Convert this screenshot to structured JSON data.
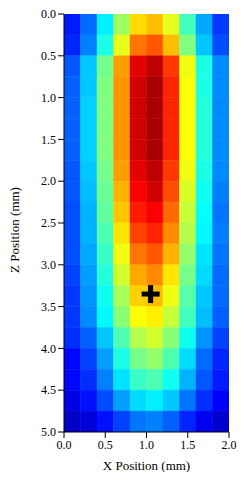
{
  "chart_data": {
    "type": "heatmap",
    "x_label": "X Position (mm)",
    "y_label": "Z Position (mm)",
    "xlim": [
      0,
      2
    ],
    "ylim": [
      0,
      5
    ],
    "xticks": [
      {
        "value": 0,
        "label": "0.0"
      },
      {
        "value": 0.5,
        "label": "0.5"
      },
      {
        "value": 1,
        "label": "1.0"
      },
      {
        "value": 1.5,
        "label": "1.5"
      },
      {
        "value": 2,
        "label": "2.0"
      }
    ],
    "yticks": [
      {
        "value": 0,
        "label": "0.0"
      },
      {
        "value": 0.5,
        "label": "0.5"
      },
      {
        "value": 1,
        "label": "1.0"
      },
      {
        "value": 1.5,
        "label": "1.5"
      },
      {
        "value": 2,
        "label": "2.0"
      },
      {
        "value": 2.5,
        "label": "2.5"
      },
      {
        "value": 3,
        "label": "3.0"
      },
      {
        "value": 3.5,
        "label": "3.5"
      },
      {
        "value": 4,
        "label": "4.0"
      },
      {
        "value": 4.5,
        "label": "4.5"
      },
      {
        "value": 5,
        "label": "5.0"
      }
    ],
    "zlim": [
      0,
      1
    ],
    "x": [
      0.1,
      0.3,
      0.5,
      0.7,
      0.9,
      1.1,
      1.3,
      1.5,
      1.7,
      1.9
    ],
    "y": [
      0.125,
      0.375,
      0.625,
      0.875,
      1.125,
      1.375,
      1.625,
      1.875,
      2.125,
      2.375,
      2.625,
      2.875,
      3.125,
      3.375,
      3.625,
      3.875,
      4.125,
      4.375,
      4.625,
      4.875
    ],
    "cells": [
      [
        0.15,
        0.23,
        0.36,
        0.53,
        0.66,
        0.69,
        0.6,
        0.44,
        0.29,
        0.18
      ],
      [
        0.16,
        0.25,
        0.4,
        0.6,
        0.76,
        0.79,
        0.69,
        0.5,
        0.32,
        0.2
      ],
      [
        0.21,
        0.32,
        0.49,
        0.72,
        0.9,
        0.94,
        0.82,
        0.61,
        0.4,
        0.26
      ],
      [
        0.22,
        0.32,
        0.5,
        0.73,
        0.92,
        0.96,
        0.84,
        0.62,
        0.4,
        0.26
      ],
      [
        0.22,
        0.33,
        0.5,
        0.73,
        0.92,
        0.96,
        0.84,
        0.62,
        0.41,
        0.26
      ],
      [
        0.22,
        0.33,
        0.5,
        0.73,
        0.92,
        0.96,
        0.84,
        0.62,
        0.41,
        0.26
      ],
      [
        0.22,
        0.33,
        0.5,
        0.73,
        0.92,
        0.96,
        0.84,
        0.62,
        0.41,
        0.26
      ],
      [
        0.21,
        0.32,
        0.49,
        0.72,
        0.9,
        0.94,
        0.82,
        0.61,
        0.4,
        0.26
      ],
      [
        0.21,
        0.31,
        0.48,
        0.7,
        0.88,
        0.92,
        0.8,
        0.59,
        0.39,
        0.25
      ],
      [
        0.2,
        0.3,
        0.47,
        0.68,
        0.85,
        0.88,
        0.77,
        0.57,
        0.38,
        0.24
      ],
      [
        0.2,
        0.3,
        0.45,
        0.65,
        0.81,
        0.84,
        0.74,
        0.55,
        0.37,
        0.25
      ],
      [
        0.2,
        0.29,
        0.43,
        0.61,
        0.76,
        0.79,
        0.7,
        0.52,
        0.35,
        0.24
      ],
      [
        0.19,
        0.28,
        0.41,
        0.58,
        0.71,
        0.74,
        0.65,
        0.49,
        0.34,
        0.23
      ],
      [
        0.18,
        0.27,
        0.39,
        0.54,
        0.67,
        0.69,
        0.61,
        0.46,
        0.32,
        0.23
      ],
      [
        0.18,
        0.26,
        0.37,
        0.51,
        0.62,
        0.64,
        0.57,
        0.44,
        0.31,
        0.22
      ],
      [
        0.17,
        0.22,
        0.32,
        0.45,
        0.55,
        0.58,
        0.51,
        0.39,
        0.27,
        0.19
      ],
      [
        0.13,
        0.19,
        0.28,
        0.4,
        0.49,
        0.52,
        0.45,
        0.34,
        0.23,
        0.16
      ],
      [
        0.13,
        0.17,
        0.25,
        0.35,
        0.43,
        0.45,
        0.39,
        0.3,
        0.21,
        0.15
      ],
      [
        0.1,
        0.14,
        0.2,
        0.28,
        0.34,
        0.36,
        0.32,
        0.24,
        0.17,
        0.12
      ],
      [
        0.07,
        0.09,
        0.14,
        0.19,
        0.24,
        0.25,
        0.22,
        0.16,
        0.11,
        0.08
      ]
    ],
    "point": {
      "x": 1.05,
      "y": 3.35,
      "marker": "plus",
      "color": "#000000"
    }
  }
}
